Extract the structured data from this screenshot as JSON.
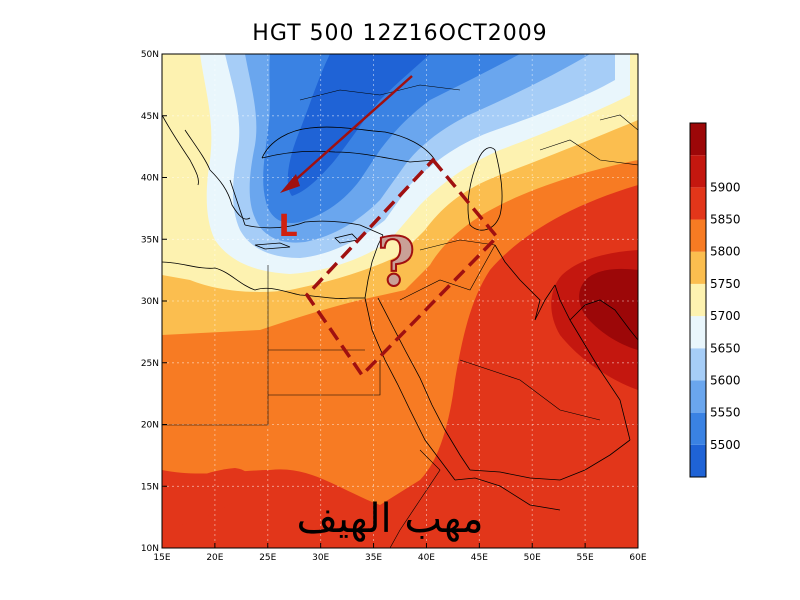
{
  "title": "HGT 500 12Z16OCT2009",
  "lon_ticks": [
    "15E",
    "20E",
    "25E",
    "30E",
    "35E",
    "40E",
    "45E",
    "50E",
    "55E",
    "60E"
  ],
  "lat_ticks": [
    "10N",
    "15N",
    "20N",
    "25N",
    "30N",
    "35N",
    "40N",
    "45N",
    "50N"
  ],
  "colorbar": {
    "levels": [
      "5500",
      "5550",
      "5600",
      "5650",
      "5700",
      "5750",
      "5800",
      "5850",
      "5900"
    ],
    "colors": [
      "#1f63d6",
      "#3a82e3",
      "#6aa6ee",
      "#a6cdf7",
      "#e9f6fc",
      "#fdf2b0",
      "#fbbe4f",
      "#f77b23",
      "#e2361a",
      "#c4170f",
      "#9c0708"
    ]
  },
  "annotations": {
    "low_marker": "L",
    "question_mark": "?",
    "arabic_text": "مهب الهيف",
    "arrow_color": "#a01010",
    "box_color": "#a01010"
  }
}
